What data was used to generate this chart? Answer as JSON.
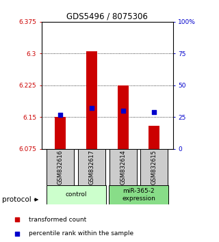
{
  "title": "GDS5496 / 8075306",
  "samples": [
    "GSM832616",
    "GSM832617",
    "GSM832614",
    "GSM832615"
  ],
  "groups": [
    {
      "name": "control",
      "color": "#ccffcc"
    },
    {
      "name": "miR-365-2\nexpression",
      "color": "#88dd88"
    }
  ],
  "bar_bottom": 6.075,
  "transformed_counts": [
    6.15,
    6.305,
    6.225,
    6.13
  ],
  "percentile_ranks_pct": [
    27,
    32,
    30,
    29
  ],
  "ylim_left": [
    6.075,
    6.375
  ],
  "ylim_right": [
    0,
    100
  ],
  "yticks_left": [
    6.075,
    6.15,
    6.225,
    6.3,
    6.375
  ],
  "ytick_labels_left": [
    "6.075",
    "6.15",
    "6.225",
    "6.3",
    "6.375"
  ],
  "yticks_right": [
    0,
    25,
    50,
    75,
    100
  ],
  "ytick_labels_right": [
    "0",
    "25",
    "50",
    "75",
    "100%"
  ],
  "hlines": [
    6.15,
    6.225,
    6.3
  ],
  "bar_color": "#cc0000",
  "dot_color": "#0000cc",
  "bar_width": 0.35,
  "dot_size": 18,
  "left_axis_color": "#cc0000",
  "right_axis_color": "#0000cc",
  "legend_red_label": "transformed count",
  "legend_blue_label": "percentile rank within the sample",
  "protocol_label": "protocol",
  "sample_box_color": "#cccccc"
}
